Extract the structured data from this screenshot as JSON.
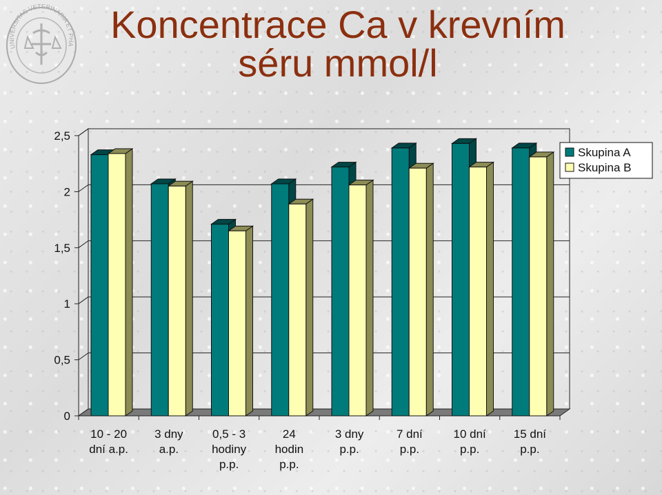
{
  "title_line1": "Koncentrace Ca v krevním",
  "title_line2": "séru mmol/l",
  "seal_text": "UNIVERSITAS VETERINARIA ET PHARMACEUTICA BRUNENSIS",
  "colors": {
    "title": "#8b2f0f",
    "series_a": "#007b7b",
    "series_a_dark": "#004646",
    "series_b": "#ffffb3",
    "series_b_dark": "#8c8c55"
  },
  "chart_data": {
    "type": "bar",
    "title": "",
    "xlabel": "",
    "ylabel": "",
    "ylim": [
      0,
      2.5
    ],
    "yticks": [
      "0",
      "0,5",
      "1",
      "1,5",
      "2",
      "2,5"
    ],
    "ytick_values": [
      0,
      0.5,
      1,
      1.5,
      2,
      2.5
    ],
    "grid": true,
    "legend_position": "top-right",
    "categories": [
      [
        "10 - 20",
        "dní a.p."
      ],
      [
        "3 dny",
        "a.p."
      ],
      [
        "0,5 - 3",
        "hodiny",
        "p.p."
      ],
      [
        "24",
        "hodin",
        "p.p."
      ],
      [
        "3 dny",
        "p.p."
      ],
      [
        "7 dní",
        "p.p."
      ],
      [
        "10 dní",
        "p.p."
      ],
      [
        "15 dní",
        "p.p."
      ]
    ],
    "series": [
      {
        "name": "Skupina A",
        "values": [
          2.33,
          2.07,
          1.71,
          2.07,
          2.22,
          2.39,
          2.43,
          2.39
        ]
      },
      {
        "name": "Skupina B",
        "values": [
          2.34,
          2.05,
          1.65,
          1.89,
          2.06,
          2.21,
          2.22,
          2.31
        ]
      }
    ]
  }
}
